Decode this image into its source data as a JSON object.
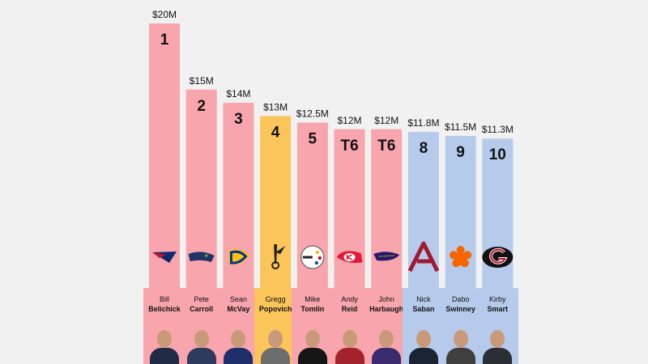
{
  "chart_data": {
    "type": "bar",
    "unit": "$M",
    "ylim": [
      0,
      20
    ],
    "grid": false,
    "bars": [
      {
        "rank": "1",
        "value": 20,
        "label": "$20M",
        "logo": "patriots-logo",
        "first": "Bill",
        "last": "Belichick",
        "color": "#f8a5ad"
      },
      {
        "rank": "2",
        "value": 15,
        "label": "$15M",
        "logo": "seahawks-logo",
        "first": "Pete",
        "last": "Carroll",
        "color": "#f8a5ad"
      },
      {
        "rank": "3",
        "value": 14,
        "label": "$14M",
        "logo": "rams-logo",
        "first": "Sean",
        "last": "McVay",
        "color": "#f8a5ad"
      },
      {
        "rank": "4",
        "value": 13,
        "label": "$13M",
        "logo": "spurs-logo",
        "first": "Gregg",
        "last": "Popovich",
        "color": "#fbc55a"
      },
      {
        "rank": "5",
        "value": 12.5,
        "label": "$12.5M",
        "logo": "steelers-logo",
        "first": "Mike",
        "last": "Tomlin",
        "color": "#f8a5ad"
      },
      {
        "rank": "T6",
        "value": 12,
        "label": "$12M",
        "logo": "chiefs-logo",
        "first": "Andy",
        "last": "Reid",
        "color": "#f8a5ad"
      },
      {
        "rank": "T6",
        "value": 12,
        "label": "$12M",
        "logo": "ravens-logo",
        "first": "John",
        "last": "Harbaugh",
        "color": "#f8a5ad"
      },
      {
        "rank": "8",
        "value": 11.8,
        "label": "$11.8M",
        "logo": "alabama-logo",
        "first": "Nick",
        "last": "Saban",
        "color": "#b6cbec"
      },
      {
        "rank": "9",
        "value": 11.5,
        "label": "$11.5M",
        "logo": "clemson-logo",
        "first": "Dabo",
        "last": "Swinney",
        "color": "#b6cbec"
      },
      {
        "rank": "10",
        "value": 11.3,
        "label": "$11.3M",
        "logo": "georgia-logo",
        "first": "Kirby",
        "last": "Smart",
        "color": "#b6cbec"
      }
    ]
  }
}
